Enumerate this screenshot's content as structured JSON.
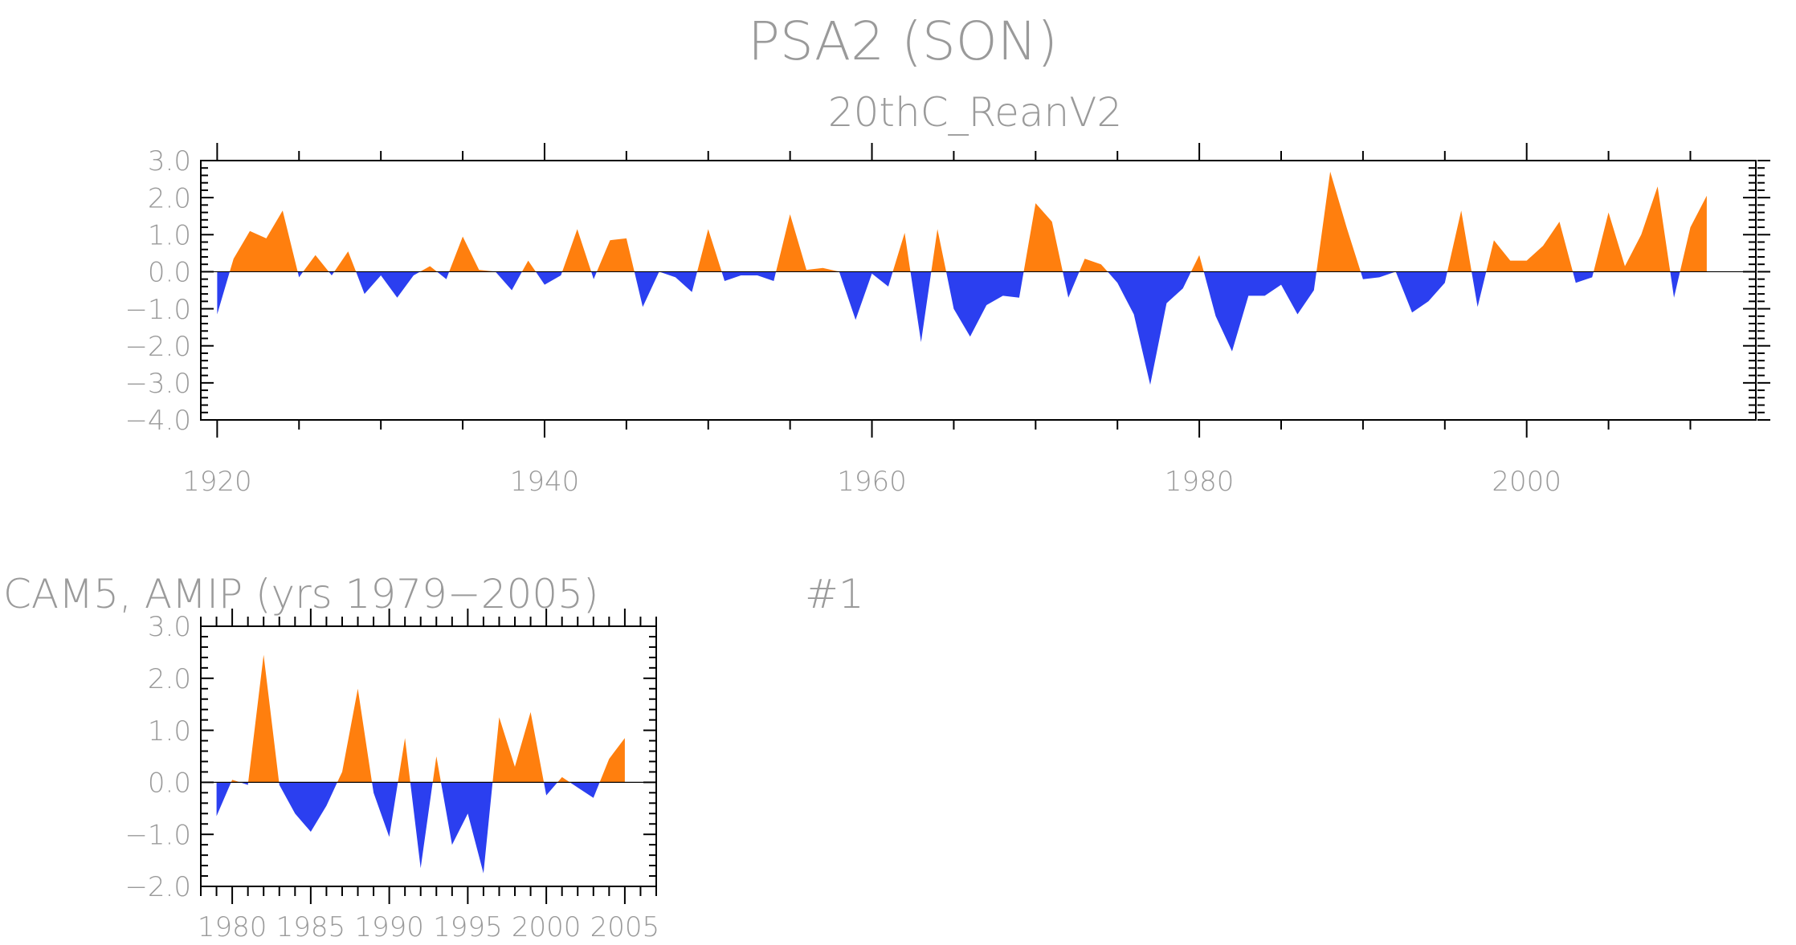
{
  "title": "PSA2 (SON)",
  "chart_data": [
    {
      "type": "area",
      "subtitle": "20thC_ReanV2",
      "x": [
        1920,
        1921,
        1922,
        1923,
        1924,
        1925,
        1926,
        1927,
        1928,
        1929,
        1930,
        1931,
        1932,
        1933,
        1934,
        1935,
        1936,
        1937,
        1938,
        1939,
        1940,
        1941,
        1942,
        1943,
        1944,
        1945,
        1946,
        1947,
        1948,
        1949,
        1950,
        1951,
        1952,
        1953,
        1954,
        1955,
        1956,
        1957,
        1958,
        1959,
        1960,
        1961,
        1962,
        1963,
        1964,
        1965,
        1966,
        1967,
        1968,
        1969,
        1970,
        1971,
        1972,
        1973,
        1974,
        1975,
        1976,
        1977,
        1978,
        1979,
        1980,
        1981,
        1982,
        1983,
        1984,
        1985,
        1986,
        1987,
        1988,
        1989,
        1990,
        1991,
        1992,
        1993,
        1994,
        1995,
        1996,
        1997,
        1998,
        1999,
        2000,
        2001,
        2002,
        2003,
        2004,
        2005,
        2006,
        2007,
        2008,
        2009,
        2010,
        2011
      ],
      "values": [
        -1.15,
        0.35,
        1.1,
        0.9,
        1.65,
        -0.15,
        0.45,
        -0.1,
        0.55,
        -0.6,
        -0.1,
        -0.7,
        -0.1,
        0.15,
        -0.2,
        0.95,
        0.05,
        0.0,
        -0.5,
        0.3,
        -0.35,
        -0.1,
        1.15,
        -0.2,
        0.85,
        0.9,
        -0.95,
        0.0,
        -0.15,
        -0.55,
        1.15,
        -0.25,
        -0.1,
        -0.1,
        -0.25,
        1.55,
        0.05,
        0.1,
        0.0,
        -1.3,
        -0.05,
        -0.4,
        1.05,
        -1.9,
        1.15,
        -1.0,
        -1.75,
        -0.9,
        -0.65,
        -0.7,
        1.85,
        1.35,
        -0.7,
        0.35,
        0.2,
        -0.3,
        -1.15,
        -3.05,
        -0.85,
        -0.45,
        0.45,
        -1.2,
        -2.15,
        -0.65,
        -0.65,
        -0.35,
        -1.15,
        -0.5,
        2.7,
        1.2,
        -0.2,
        -0.15,
        0.0,
        -1.1,
        -0.8,
        -0.3,
        1.65,
        -0.95,
        0.85,
        0.3,
        0.3,
        0.7,
        1.35,
        -0.3,
        -0.15,
        1.6,
        0.15,
        1.0,
        2.3,
        -0.7,
        1.2,
        2.05
      ],
      "xlim": [
        1919,
        2014
      ],
      "ylim": [
        -4.0,
        3.0
      ],
      "yticks": [
        "3.0",
        "2.0",
        "1.0",
        "0.0",
        "−1.0",
        "−2.0",
        "−3.0",
        "−4.0"
      ],
      "xticks": [
        "1920",
        "1940",
        "1960",
        "1980",
        "2000"
      ],
      "colors": {
        "positive": "#ff7f0e",
        "negative": "#2b3ff0"
      }
    },
    {
      "type": "area",
      "subtitle": "CAM5, AMIP (yrs 1979−2005)",
      "tag": "#1",
      "x": [
        1979,
        1980,
        1981,
        1982,
        1983,
        1984,
        1985,
        1986,
        1987,
        1988,
        1989,
        1990,
        1991,
        1992,
        1993,
        1994,
        1995,
        1996,
        1997,
        1998,
        1999,
        2000,
        2001,
        2002,
        2003,
        2004,
        2005
      ],
      "values": [
        -0.65,
        0.05,
        -0.05,
        2.45,
        -0.05,
        -0.6,
        -0.95,
        -0.45,
        0.2,
        1.8,
        -0.2,
        -1.05,
        0.85,
        -1.65,
        0.5,
        -1.2,
        -0.6,
        -1.75,
        1.25,
        0.3,
        1.35,
        -0.25,
        0.1,
        -0.1,
        -0.3,
        0.45,
        0.85
      ],
      "xlim": [
        1978,
        2007
      ],
      "ylim": [
        -2.0,
        3.0
      ],
      "yticks": [
        "3.0",
        "2.0",
        "1.0",
        "0.0",
        "−1.0",
        "−2.0"
      ],
      "xticks": [
        "1980",
        "1985",
        "1990",
        "1995",
        "2000",
        "2005"
      ],
      "colors": {
        "positive": "#ff7f0e",
        "negative": "#2b3ff0"
      }
    }
  ]
}
